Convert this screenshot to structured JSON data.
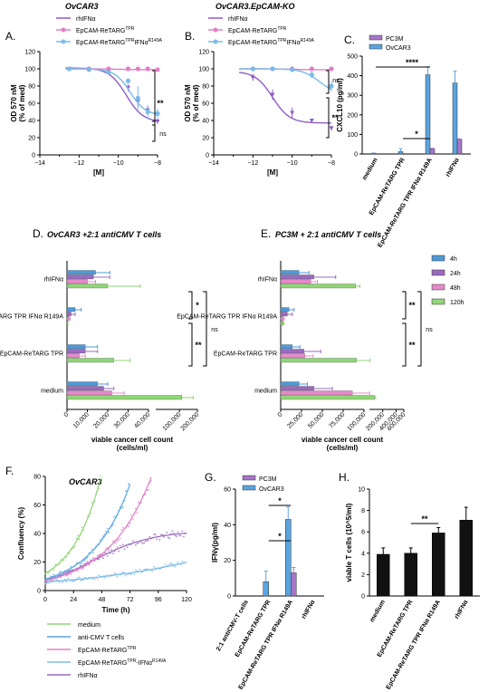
{
  "colors": {
    "rhIFN": "#8e5cc4",
    "epcam": "#e07fc9",
    "epcamMut": "#7bbbe8",
    "pc3m": "#a675c9",
    "ovcar3": "#5aa4df",
    "h4": "#4f9ad6",
    "h24": "#9a6bbe",
    "h48": "#e68ac9",
    "h120": "#8fd676",
    "medium": "#8fd676",
    "antiCMV": "#5aa4df",
    "epcamCurve": "#e07fc9",
    "epcamMutCurve": "#7bbbe8",
    "rhIFNcurve": "#9a6bbe",
    "black": "#111111"
  },
  "panel_labels": {
    "A": "A.",
    "B": "B.",
    "C": "C.",
    "D": "D.",
    "E": "E.",
    "F": "F.",
    "G": "G.",
    "H": "H."
  },
  "titles": {
    "A": "OvCAR3",
    "B": "OvCAR3.EpCAM-KO",
    "D": "OvCAR3 +2:1 antiCMV T cells",
    "E": "PC3M + 2:1 antiCMV  T cells",
    "F": "OvCAR3"
  },
  "legend_AB": [
    "rhIFNα",
    "EpCAM-ReTARG",
    "EpCAM-ReTARG"
  ],
  "legend_AB_sup": [
    "",
    "TPR",
    "TPR"
  ],
  "legend_AB_tail": [
    "",
    "",
    "IFNα"
  ],
  "legend_AB_tailsup": [
    "",
    "",
    "R149A"
  ],
  "legend_CG": [
    "PC3M",
    "OvCAR3"
  ],
  "legend_DE": [
    "4h",
    "24h",
    "48h",
    "120h"
  ],
  "legend_F": [
    "medium",
    "anti-CMV T cells",
    "EpCAM-ReTARG",
    "EpCAM-ReTARG",
    "rhIFNα"
  ],
  "legend_F_sup": [
    "",
    "",
    "TPR",
    "TPR",
    ""
  ],
  "legend_F_tail": [
    "",
    "",
    "",
    "-IFNα",
    ""
  ],
  "legend_F_tailsup": [
    "",
    "",
    "",
    "R149A",
    ""
  ],
  "sig": {
    "A1": "**",
    "A2": "ns",
    "B1": "ns",
    "B2": "**",
    "C1": "****",
    "C2": "*",
    "D1": "*",
    "D2": "**",
    "D3": "ns",
    "E1": "**",
    "E2": "**",
    "E3": "ns",
    "G1": "*",
    "G2": "*",
    "H1": "**"
  },
  "chart_data": [
    {
      "type": "line",
      "panel": "A",
      "title": "OvCAR3",
      "xlabel": "[M]",
      "ylabel": "OD 570 nM\n(% of med)",
      "xlim": [
        -14,
        -8
      ],
      "ylim": [
        0,
        120
      ],
      "xticks": [
        -14,
        -12,
        -10,
        -8
      ],
      "xtick_labels": [
        "−14",
        "−12",
        "−10",
        "−8"
      ],
      "yticks": [
        0,
        20,
        40,
        60,
        80,
        100,
        120
      ],
      "series": [
        {
          "name": "rhIFNα",
          "x": [
            -12.5,
            -11.5,
            -10.5,
            -9.5,
            -9,
            -8.5,
            -8
          ],
          "y": [
            100,
            99,
            96,
            78,
            62,
            52,
            39
          ],
          "err": [
            1,
            1,
            2,
            4,
            6,
            5,
            3
          ],
          "curve": {
            "top": 101,
            "bottom": 38,
            "ec50": -9.6,
            "hill": 1.0
          }
        },
        {
          "name": "EpCAM-ReTARG TPR",
          "x": [
            -12.5,
            -11.5,
            -10.5,
            -9.5,
            -9,
            -8.5,
            -8
          ],
          "y": [
            100,
            100,
            100,
            100,
            100,
            100,
            99
          ],
          "err": [
            1,
            1,
            1,
            1,
            1,
            1,
            1
          ],
          "curve": {
            "top": 100,
            "bottom": 99,
            "ec50": -10,
            "hill": 1.0
          }
        },
        {
          "name": "EpCAM-ReTARG TPR IFNα R149A",
          "x": [
            -12.5,
            -11.5,
            -10.5,
            -9.5,
            -9,
            -8.5,
            -8
          ],
          "y": [
            100,
            99,
            96,
            86,
            66,
            50,
            48
          ],
          "err": [
            1,
            1,
            2,
            3,
            14,
            8,
            6
          ],
          "curve": {
            "top": 100,
            "bottom": 46,
            "ec50": -9.4,
            "hill": 1.1
          }
        }
      ]
    },
    {
      "type": "line",
      "panel": "B",
      "title": "OvCAR3.EpCAM-KO",
      "xlabel": "[M]",
      "ylabel": "OD 570 nM\n(% of med)",
      "xlim": [
        -14,
        -8
      ],
      "ylim": [
        0,
        120
      ],
      "xticks": [
        -14,
        -12,
        -10,
        -8
      ],
      "xtick_labels": [
        "−14",
        "−12",
        "−10",
        "−8"
      ],
      "yticks": [
        0,
        20,
        40,
        60,
        80,
        100,
        120
      ],
      "series": [
        {
          "name": "rhIFNα",
          "x": [
            -12,
            -11,
            -10,
            -9,
            -8
          ],
          "y": [
            90,
            70,
            49,
            40,
            31
          ],
          "err": [
            4,
            6,
            6,
            2,
            3
          ],
          "curve": {
            "top": 97,
            "bottom": 37,
            "ec50": -11.0,
            "hill": 1.0
          }
        },
        {
          "name": "EpCAM-ReTARG TPR",
          "x": [
            -12,
            -11,
            -10,
            -9,
            -8
          ],
          "y": [
            100,
            100,
            100,
            100,
            100
          ],
          "err": [
            1,
            1,
            1,
            1,
            1
          ],
          "curve": {
            "top": 100,
            "bottom": 99,
            "ec50": -10,
            "hill": 1.0
          }
        },
        {
          "name": "EpCAM-ReTARG TPR IFNα R149A",
          "x": [
            -12,
            -11,
            -10,
            -9,
            -8
          ],
          "y": [
            100,
            100,
            99,
            93,
            80
          ],
          "err": [
            1,
            1,
            2,
            4,
            6
          ],
          "curve": {
            "top": 100,
            "bottom": 70,
            "ec50": -8.6,
            "hill": 1.0
          }
        }
      ]
    },
    {
      "type": "bar",
      "panel": "C",
      "ylabel": "CXCL10 (pg/ml)",
      "ylim": [
        0,
        500
      ],
      "yticks": [
        0,
        100,
        200,
        300,
        400,
        500
      ],
      "categories": [
        "medium",
        "EpCAM-ReTARG TPR",
        "EpCAM-ReTARG TPR IFNα R149A",
        "rhIFNα"
      ],
      "series": [
        {
          "name": "OvCAR3",
          "values": [
            3,
            12,
            405,
            363
          ],
          "err": [
            2,
            15,
            40,
            60
          ]
        },
        {
          "name": "PC3M",
          "values": [
            0,
            0,
            27,
            75
          ],
          "err": [
            0,
            0,
            2,
            2
          ]
        }
      ]
    },
    {
      "type": "bar",
      "panel": "D",
      "orientation": "horizontal",
      "title": "OvCAR3 +2:1 antiCMV T cells",
      "xlabel": "viable cancer cell count\n(cells/ml)",
      "xticks": [
        0,
        10000,
        20000,
        30000,
        40000,
        100000,
        200000
      ],
      "xtick_labels": [
        "0",
        "10,000",
        "20,000",
        "30,000",
        "40,000",
        "100,000",
        "200,000"
      ],
      "categories": [
        "rhIFNα",
        "EpCAM-ReTARG TPR IFNα R149A",
        "EpCAM-ReTARG TPR",
        "medium"
      ],
      "series": [
        {
          "name": "4h",
          "values": [
            14000,
            4000,
            9000,
            15000
          ],
          "err": [
            7000,
            3000,
            6000,
            5000
          ]
        },
        {
          "name": "24h",
          "values": [
            13000,
            2000,
            9000,
            18000
          ],
          "err": [
            8000,
            2000,
            6000,
            5000
          ]
        },
        {
          "name": "48h",
          "values": [
            10000,
            1000,
            6000,
            22000
          ],
          "err": [
            4000,
            500,
            3000,
            6000
          ]
        },
        {
          "name": "120h",
          "values": [
            20000,
            300,
            23000,
            110000
          ],
          "err": [
            16000,
            200,
            8000,
            60000
          ]
        }
      ]
    },
    {
      "type": "bar",
      "panel": "E",
      "orientation": "horizontal",
      "title": "PC3M + 2:1 antiCMV  T cells",
      "xlabel": "viable cancer cell count\n(cells/ml)",
      "xticks": [
        0,
        25000,
        50000,
        75000,
        100000,
        200000,
        400000,
        600000
      ],
      "xtick_labels": [
        "0",
        "25,000",
        "50,000",
        "75,000",
        "100,000",
        "200,000",
        "400,000",
        "600,000"
      ],
      "categories": [
        "rhIFNα",
        "EpCAM-ReTARG TPR IFNα R149A",
        "EpCAM-ReTARG TPR",
        "medium"
      ],
      "series": [
        {
          "name": "4h",
          "values": [
            22000,
            10000,
            14000,
            22000
          ],
          "err": [
            12000,
            6000,
            9000,
            10000
          ]
        },
        {
          "name": "24h",
          "values": [
            40000,
            8000,
            28000,
            40000
          ],
          "err": [
            26000,
            6000,
            20000,
            22000
          ]
        },
        {
          "name": "48h",
          "values": [
            36000,
            3000,
            29000,
            86000
          ],
          "err": [
            8000,
            1500,
            10000,
            15000
          ]
        },
        {
          "name": "120h",
          "values": [
            90000,
            3000,
            91000,
            130000
          ],
          "err": [
            5000,
            1000,
            12000,
            8000
          ]
        }
      ]
    },
    {
      "type": "scatter",
      "panel": "F",
      "title": "OvCAR3",
      "xlabel": "Time (h)",
      "ylabel": "Confluency (%)",
      "xlim": [
        0,
        120
      ],
      "ylim": [
        0,
        80
      ],
      "xticks": [
        0,
        24,
        48,
        72,
        96,
        120
      ],
      "yticks": [
        0,
        20,
        40,
        60,
        80
      ],
      "series": [
        {
          "name": "medium",
          "params": {
            "y0": 12,
            "r": 0.04,
            "tmax": 48
          }
        },
        {
          "name": "anti-CMV T cells",
          "params": {
            "y0": 8,
            "r": 0.031,
            "tmax": 72
          }
        },
        {
          "name": "EpCAM-ReTARG TPR",
          "params": {
            "y0": 7,
            "r": 0.027,
            "tmax": 92
          }
        },
        {
          "name": "EpCAM-ReTARG TPR-IFNα R149A",
          "params": {
            "y0": 6,
            "r": 0.01,
            "tmax": 120
          }
        },
        {
          "name": "rhIFNα",
          "params": {
            "y0": 7,
            "r": 0.018,
            "tmax": 120,
            "plateau": 42
          }
        }
      ]
    },
    {
      "type": "bar",
      "panel": "G",
      "ylabel": "IFNγ(pg/ml)",
      "ylim": [
        0,
        60
      ],
      "yticks": [
        0,
        20,
        40,
        60
      ],
      "categories": [
        "2:1 antiCMV-T cells",
        "EpCAM-ReTARG TPR",
        "EpCAM-ReTARG TPR IFNα R149A",
        "rhIFNα"
      ],
      "series": [
        {
          "name": "OvCAR3",
          "values": [
            0,
            8,
            43,
            0
          ],
          "err": [
            0,
            6,
            7,
            0
          ]
        },
        {
          "name": "PC3M",
          "values": [
            0,
            0,
            13,
            0
          ],
          "err": [
            0,
            0,
            3,
            0
          ]
        }
      ]
    },
    {
      "type": "bar",
      "panel": "H",
      "ylabel": "viable T cells (10^5/ml)",
      "ylim": [
        0,
        10
      ],
      "yticks": [
        0,
        2,
        4,
        6,
        8,
        10
      ],
      "categories": [
        "medium",
        "EpCAM-ReTARG TPR",
        "EpCAM-ReTARG TPR IFNα R149A",
        "rhIFNα"
      ],
      "values": [
        3.9,
        4.0,
        5.9,
        7.1
      ],
      "err": [
        0.6,
        0.5,
        0.5,
        1.2
      ]
    }
  ]
}
